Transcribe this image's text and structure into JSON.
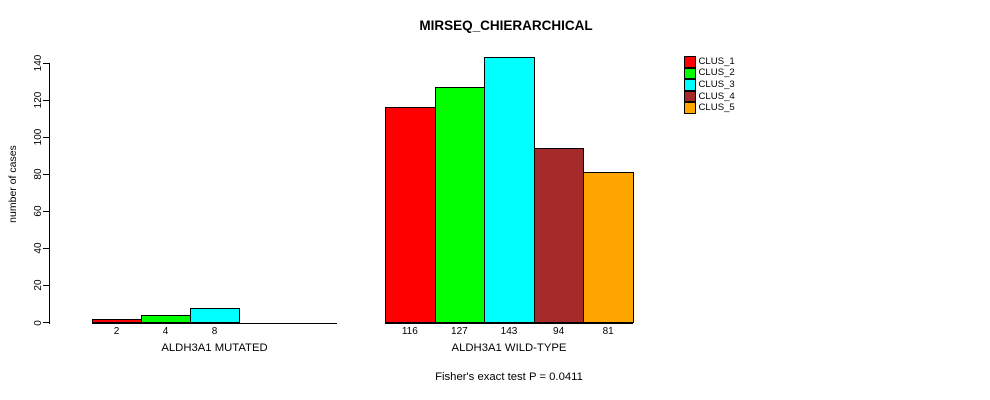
{
  "chart_data": {
    "type": "bar",
    "title": "MIRSEQ_CHIERARCHICAL",
    "ylabel": "number of cases",
    "xlabel": "",
    "ylim": [
      0,
      140
    ],
    "yticks": [
      0,
      20,
      40,
      60,
      80,
      100,
      120,
      140
    ],
    "grid": false,
    "legend_position": "right",
    "background_color": "#ffffff",
    "axis_color": "#000000",
    "series": [
      {
        "name": "CLUS_1",
        "color": "#FF0000"
      },
      {
        "name": "CLUS_2",
        "color": "#00FF00"
      },
      {
        "name": "CLUS_3",
        "color": "#00FFFF"
      },
      {
        "name": "CLUS_4",
        "color": "#A52A2A"
      },
      {
        "name": "CLUS_5",
        "color": "#FFA500"
      }
    ],
    "groups": [
      {
        "label": "ALDH3A1 MUTATED",
        "values": [
          2,
          4,
          8,
          0,
          0
        ]
      },
      {
        "label": "ALDH3A1 WILD-TYPE",
        "values": [
          116,
          127,
          143,
          94,
          81
        ]
      }
    ],
    "bar_value_labels_shown": true,
    "annotation": "Fisher's exact test P = 0.0411"
  }
}
